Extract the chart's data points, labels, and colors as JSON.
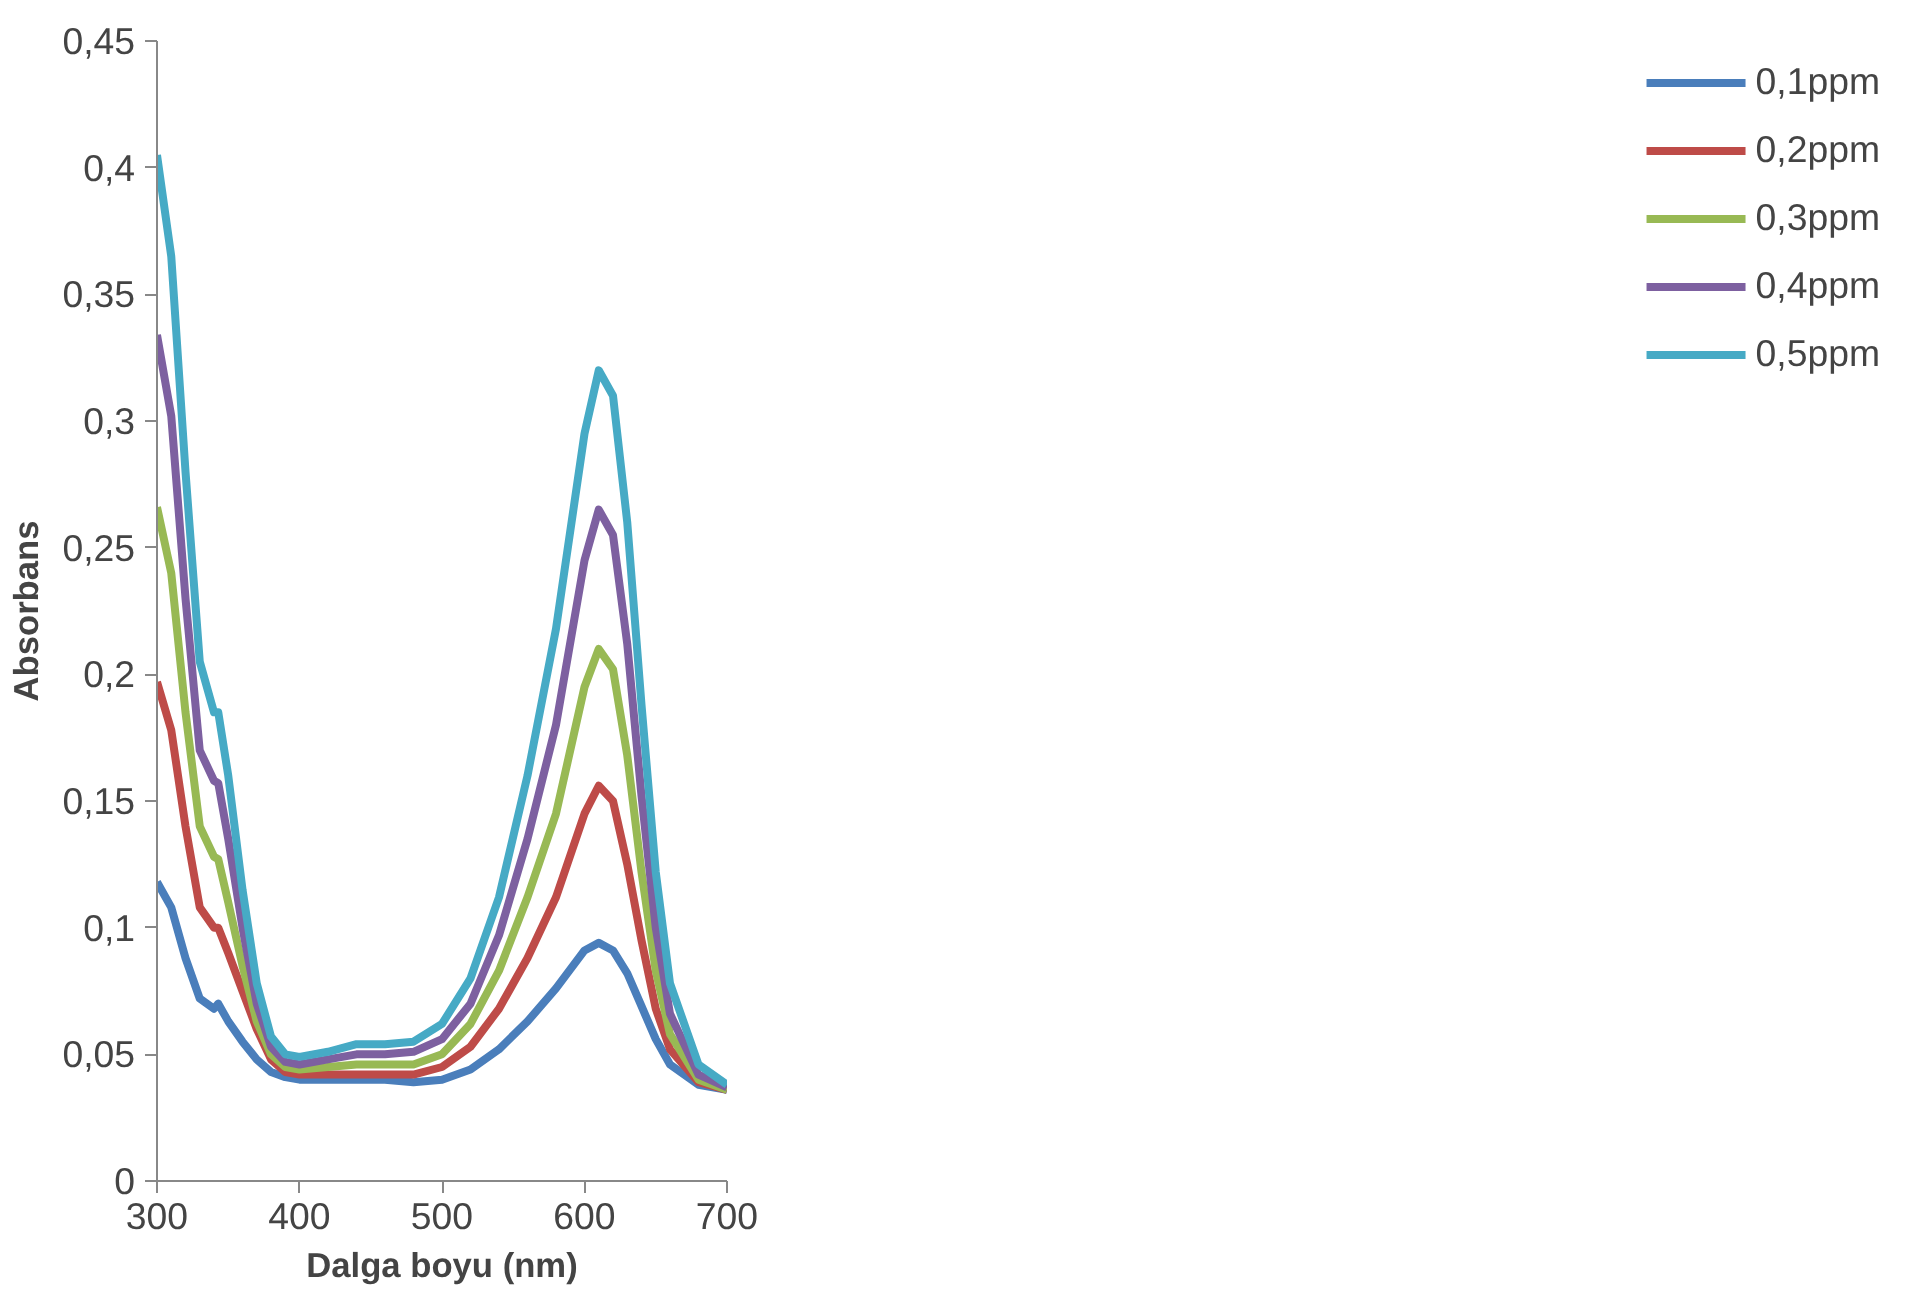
{
  "chart_data": {
    "type": "line",
    "xlabel": "Dalga boyu (nm)",
    "ylabel": "Absorbans",
    "x": [
      300,
      310,
      320,
      330,
      340,
      343,
      350,
      360,
      370,
      380,
      390,
      400,
      420,
      440,
      460,
      480,
      500,
      520,
      540,
      560,
      580,
      600,
      610,
      620,
      630,
      640,
      650,
      660,
      680,
      700
    ],
    "xlim": [
      300,
      700
    ],
    "xticks": [
      300,
      400,
      500,
      600,
      700
    ],
    "ylim": [
      0,
      0.45
    ],
    "yticks": [
      {
        "value": 0,
        "label": "0"
      },
      {
        "value": 0.05,
        "label": "0,05"
      },
      {
        "value": 0.1,
        "label": "0,1"
      },
      {
        "value": 0.15,
        "label": "0,15"
      },
      {
        "value": 0.2,
        "label": "0,2"
      },
      {
        "value": 0.25,
        "label": "0,25"
      },
      {
        "value": 0.3,
        "label": "0,3"
      },
      {
        "value": 0.35,
        "label": "0,35"
      },
      {
        "value": 0.4,
        "label": "0,4"
      },
      {
        "value": 0.45,
        "label": "0,45"
      }
    ],
    "grid": false,
    "legend": "right",
    "marker": "none",
    "line_style": "solid",
    "series": [
      {
        "name": "0,1ppm",
        "color": "#4a7ebb",
        "values": [
          0.118,
          0.108,
          0.088,
          0.072,
          0.068,
          0.07,
          0.063,
          0.055,
          0.048,
          0.043,
          0.041,
          0.04,
          0.04,
          0.04,
          0.04,
          0.039,
          0.04,
          0.044,
          0.052,
          0.063,
          0.076,
          0.091,
          0.094,
          0.091,
          0.082,
          0.069,
          0.056,
          0.046,
          0.038,
          0.036
        ]
      },
      {
        "name": "0,2ppm",
        "color": "#be4b48",
        "values": [
          0.197,
          0.178,
          0.14,
          0.108,
          0.1,
          0.1,
          0.09,
          0.075,
          0.06,
          0.048,
          0.043,
          0.042,
          0.042,
          0.042,
          0.042,
          0.042,
          0.045,
          0.053,
          0.068,
          0.088,
          0.112,
          0.145,
          0.156,
          0.15,
          0.125,
          0.095,
          0.068,
          0.052,
          0.039,
          0.036
        ]
      },
      {
        "name": "0,3ppm",
        "color": "#98b954",
        "values": [
          0.266,
          0.24,
          0.185,
          0.14,
          0.128,
          0.127,
          0.11,
          0.085,
          0.063,
          0.05,
          0.045,
          0.044,
          0.045,
          0.046,
          0.046,
          0.046,
          0.05,
          0.062,
          0.083,
          0.112,
          0.145,
          0.195,
          0.21,
          0.202,
          0.168,
          0.122,
          0.083,
          0.058,
          0.04,
          0.036
        ]
      },
      {
        "name": "0,4ppm",
        "color": "#7d60a0",
        "values": [
          0.334,
          0.302,
          0.23,
          0.17,
          0.158,
          0.157,
          0.135,
          0.1,
          0.07,
          0.053,
          0.047,
          0.046,
          0.048,
          0.05,
          0.05,
          0.051,
          0.056,
          0.07,
          0.097,
          0.135,
          0.18,
          0.245,
          0.265,
          0.255,
          0.212,
          0.152,
          0.1,
          0.066,
          0.042,
          0.037
        ]
      },
      {
        "name": "0,5ppm",
        "color": "#46aac5",
        "values": [
          0.405,
          0.365,
          0.28,
          0.205,
          0.185,
          0.185,
          0.16,
          0.115,
          0.078,
          0.057,
          0.05,
          0.049,
          0.051,
          0.054,
          0.054,
          0.055,
          0.062,
          0.08,
          0.112,
          0.16,
          0.218,
          0.295,
          0.32,
          0.31,
          0.26,
          0.188,
          0.122,
          0.078,
          0.046,
          0.038
        ]
      }
    ]
  }
}
